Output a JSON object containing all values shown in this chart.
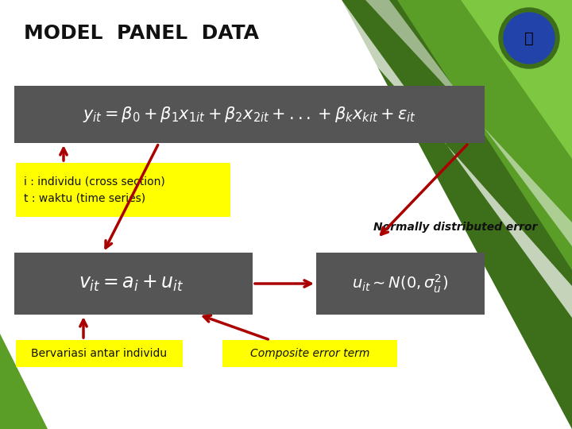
{
  "title": "MODEL  PANEL  DATA",
  "title_fontsize": 18,
  "bg_color": "#ffffff",
  "dark_box_color": "#555555",
  "yellow_box_color": "#ffff00",
  "eq1_text": "$y_{it} = \\beta_0 + \\beta_1 x_{1it} + \\beta_2 x_{2it} + ...+ \\beta_k x_{kit} + \\varepsilon_{it}$",
  "eq2_text": "$v_{it} = a_i + u_{it}$",
  "eq3_text": "$u_{it} \\sim N(0, \\sigma_u^2)$",
  "label1_text": "i : individu (cross section)\nt : waktu (time series)",
  "label2_text": "Normally distributed error",
  "label3_text": "Bervariasi antar individu",
  "label4_text": "Composite error term",
  "arrow_color": "#aa0000",
  "text_color_dark": "#111111",
  "eq_text_color": "#ffffff",
  "green1": "#3d6e1a",
  "green2": "#5a9e28",
  "green3": "#7dc840",
  "green_strip": "#c8e870"
}
